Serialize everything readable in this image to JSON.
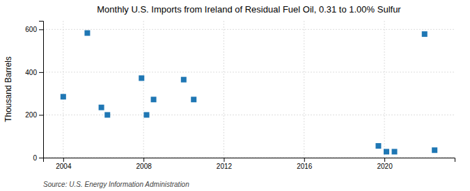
{
  "chart_data": {
    "type": "scatter",
    "title": "Monthly U.S. Imports from Ireland of Residual Fuel Oil, 0.31 to 1.00% Sulfur",
    "y_label": "Thousand Barrels",
    "annotations": [
      "Source: U.S. Energy Information Administration"
    ],
    "x": [
      2004.0,
      2005.2,
      2005.9,
      2006.2,
      2007.9,
      2008.15,
      2008.5,
      2010.0,
      2010.5,
      2019.7,
      2020.1,
      2020.5,
      2022.0,
      2022.5
    ],
    "values": [
      285,
      583,
      235,
      200,
      372,
      200,
      272,
      365,
      272,
      55,
      28,
      28,
      578,
      35
    ],
    "marker": "square",
    "xlim": [
      2003.0,
      2023.5
    ],
    "xticks": [
      2004,
      2008,
      2012,
      2016,
      2020
    ],
    "ylim": [
      0,
      640
    ],
    "yticks": [
      0,
      200,
      400,
      600
    ],
    "grid": true
  }
}
